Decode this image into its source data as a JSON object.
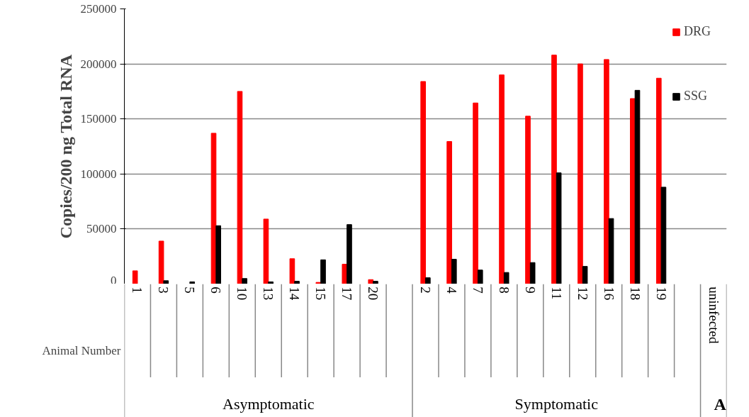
{
  "chart_data": {
    "type": "bar",
    "ylabel": "Copies/200 ng Total RNA",
    "xlabel": "Animal Number",
    "categories": [
      "1",
      "3",
      "5",
      "6",
      "10",
      "13",
      "14",
      "15",
      "17",
      "20",
      null,
      "2",
      "4",
      "7",
      "8",
      "9",
      "11",
      "12",
      "16",
      "18",
      "19",
      null,
      "uninfected"
    ],
    "series": [
      {
        "name": "DRG",
        "color": "#ff0000",
        "values": [
          12000,
          39000,
          0,
          137000,
          175000,
          59000,
          23000,
          1500,
          18000,
          4000,
          null,
          184000,
          129500,
          164500,
          190000,
          152500,
          208000,
          200000,
          204000,
          168500,
          187000,
          null,
          null
        ]
      },
      {
        "name": "SSG",
        "color": "#000000",
        "values": [
          0,
          3000,
          2000,
          53000,
          5000,
          2000,
          2500,
          22000,
          54000,
          2500,
          null,
          5700,
          22500,
          12700,
          10500,
          19500,
          101000,
          16000,
          59500,
          176000,
          88000,
          null,
          null
        ]
      }
    ],
    "ylim": [
      0,
      250000
    ],
    "yticks": [
      0,
      50000,
      100000,
      150000,
      200000,
      250000
    ],
    "grid": "y",
    "legend": "top right",
    "annotations": [
      "Asymptomatic",
      "Symptomatic",
      "A"
    ]
  }
}
